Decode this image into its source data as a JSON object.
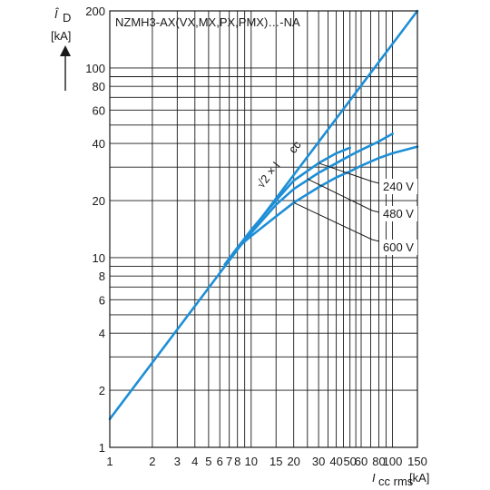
{
  "chart_data": {
    "type": "line",
    "title": "NZMH3-AX(VX,MX,PX,PMX)…-NA",
    "xlabel_main": "I",
    "xlabel_sub": "cc rms",
    "xlabel_unit": "[kA]",
    "ylabel_main": "Î",
    "ylabel_sub": "D",
    "ylabel_unit": "[kA]",
    "xscale": "log",
    "yscale": "log",
    "xlim": [
      1,
      150
    ],
    "ylim": [
      1,
      200
    ],
    "grid": true,
    "x_ticks": [
      1,
      2,
      3,
      4,
      5,
      6,
      7,
      8,
      10,
      15,
      20,
      30,
      40,
      50,
      60,
      80,
      100,
      150
    ],
    "x_tick_labels": [
      "1",
      "2",
      "3",
      "4",
      "5",
      "6",
      "7",
      "8",
      "10",
      "15",
      "20",
      "30",
      "40",
      "50",
      "60",
      "80",
      "100",
      "150"
    ],
    "y_ticks": [
      1,
      2,
      4,
      6,
      8,
      10,
      20,
      40,
      60,
      80,
      100,
      200
    ],
    "y_tick_labels": [
      "1",
      "2",
      "4",
      "6",
      "8",
      "10",
      "20",
      "40",
      "60",
      "80",
      "100",
      "200"
    ],
    "line_color": "#1e8fd6",
    "series": [
      {
        "name": "√2 × I",
        "name_sub": "cc",
        "x": [
          1,
          150
        ],
        "y": [
          1.41,
          200
        ]
      },
      {
        "name": "240 V",
        "x": [
          7.5,
          10,
          15,
          20,
          30,
          40,
          50
        ],
        "y": [
          10.6,
          14,
          20,
          25.5,
          31.5,
          35.5,
          38
        ]
      },
      {
        "name": "480 V",
        "x": [
          7.5,
          10,
          15,
          20,
          30,
          40,
          50,
          60,
          80,
          100
        ],
        "y": [
          10.6,
          13.5,
          19,
          23,
          28,
          31.5,
          34.5,
          37,
          41,
          45
        ]
      },
      {
        "name": "600 V",
        "x": [
          6.5,
          8,
          10,
          15,
          20,
          30,
          40,
          50,
          60,
          80,
          100,
          150
        ],
        "y": [
          9.2,
          11.3,
          13,
          16.5,
          19.5,
          23.5,
          26.5,
          28.5,
          30.5,
          33.5,
          35.5,
          38.5
        ]
      }
    ]
  }
}
